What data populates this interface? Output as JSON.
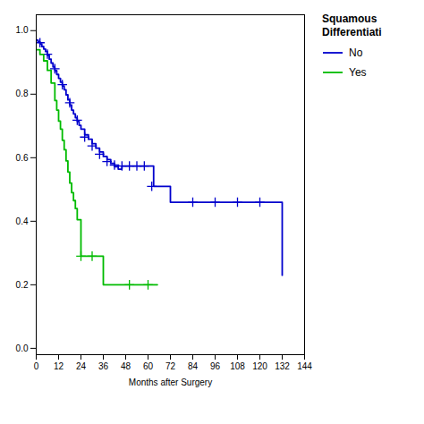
{
  "chart_data": {
    "type": "step",
    "xlabel": "Months after Surgery",
    "xlim": [
      0,
      144
    ],
    "ylim": [
      -0.02,
      1.05
    ],
    "xticks": [
      0,
      12,
      24,
      36,
      48,
      60,
      72,
      84,
      96,
      108,
      120,
      132,
      144
    ],
    "yticks": [
      {
        "value": 0.0,
        "label": "0.0"
      },
      0.2,
      0.4,
      0.6,
      0.8,
      {
        "value": 1.0,
        "label": "1.0"
      }
    ],
    "grid": false,
    "legend": "right",
    "legend_title": "Squamous\nDifferentiati",
    "series": [
      {
        "name": "No",
        "color": "#0000CD",
        "line_style": "solid",
        "marker": "+",
        "x": [
          0,
          1,
          2,
          3,
          4,
          5,
          6,
          7,
          8,
          9,
          10,
          11,
          12,
          13,
          14,
          15,
          16,
          17,
          18,
          19,
          20,
          21,
          22,
          23,
          24,
          26,
          28,
          30,
          32,
          34,
          36,
          38,
          40,
          42,
          44,
          46,
          48,
          50,
          52,
          54,
          56,
          58,
          60,
          63,
          72,
          84,
          96,
          108,
          120,
          132
        ],
        "values": [
          0.97,
          0.965,
          0.958,
          0.95,
          0.942,
          0.934,
          0.922,
          0.91,
          0.898,
          0.886,
          0.874,
          0.862,
          0.85,
          0.838,
          0.826,
          0.814,
          0.798,
          0.782,
          0.766,
          0.75,
          0.738,
          0.726,
          0.714,
          0.702,
          0.69,
          0.672,
          0.658,
          0.644,
          0.63,
          0.618,
          0.604,
          0.594,
          0.582,
          0.572,
          0.564,
          0.574,
          0.574,
          0.574,
          0.574,
          0.574,
          0.574,
          0.574,
          0.574,
          0.51,
          0.46,
          0.46,
          0.46,
          0.46,
          0.46,
          0.23
        ],
        "censor_x": [
          2,
          6,
          10,
          14,
          18,
          22,
          26,
          30,
          34,
          38,
          42,
          46,
          50,
          54,
          58,
          62,
          84,
          96,
          108,
          120
        ],
        "censor_y": [
          0.962,
          0.926,
          0.88,
          0.83,
          0.773,
          0.718,
          0.665,
          0.637,
          0.611,
          0.588,
          0.577,
          0.574,
          0.574,
          0.574,
          0.574,
          0.51,
          0.46,
          0.46,
          0.46,
          0.46
        ]
      },
      {
        "name": "Yes",
        "color": "#00BB00",
        "line_style": "solid",
        "marker": "+",
        "x": [
          0,
          2,
          4,
          6,
          8,
          10,
          11,
          12,
          13,
          14,
          15,
          16,
          17,
          18,
          19,
          20,
          21,
          22,
          24,
          36,
          48,
          65
        ],
        "values": [
          0.94,
          0.925,
          0.905,
          0.875,
          0.835,
          0.78,
          0.75,
          0.715,
          0.69,
          0.655,
          0.625,
          0.59,
          0.555,
          0.52,
          0.49,
          0.465,
          0.44,
          0.405,
          0.29,
          0.2,
          0.2,
          0.2
        ],
        "censor_x": [
          24,
          30,
          50,
          60
        ],
        "censor_y": [
          0.29,
          0.29,
          0.2,
          0.2
        ]
      }
    ]
  }
}
